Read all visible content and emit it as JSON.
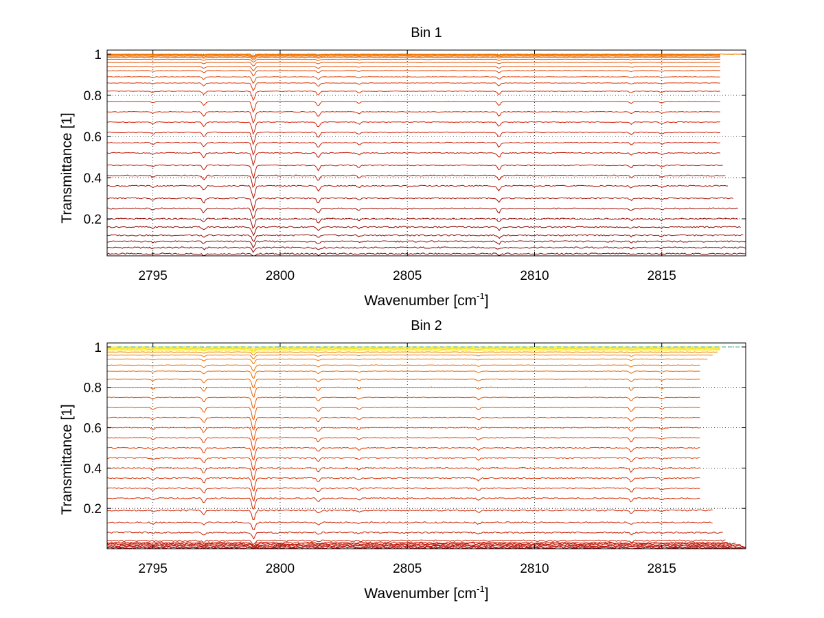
{
  "chart_data": [
    {
      "type": "line",
      "title": "Bin 1",
      "xlabel": "Wavenumber [cm",
      "xlabel_sup": "-1",
      "xlabel_end": "]",
      "ylabel": "Transmittance [1]",
      "xlim": [
        2793.2,
        2818.3
      ],
      "ylim": [
        0.02,
        1.02
      ],
      "xticks": [
        2795,
        2800,
        2805,
        2810,
        2815
      ],
      "xtick_labels": [
        "2795",
        "2800",
        "2805",
        "2810",
        "2815"
      ],
      "yticks": [
        0.2,
        0.4,
        0.6,
        0.8,
        1
      ],
      "ytick_labels": [
        "0.2",
        "0.4",
        "0.6",
        "0.8",
        "1"
      ],
      "grid": true,
      "series_description": "family of transmittance spectra, baselines stacked from ~0.03 to 1.0, darker red at low transmittance to orange near 1",
      "baselines": [
        0.03,
        0.06,
        0.09,
        0.12,
        0.16,
        0.2,
        0.25,
        0.3,
        0.36,
        0.41,
        0.46,
        0.52,
        0.57,
        0.62,
        0.67,
        0.72,
        0.77,
        0.82,
        0.86,
        0.89,
        0.92,
        0.94,
        0.96,
        0.975,
        0.985,
        0.99,
        0.995,
        0.998,
        1.0
      ],
      "x_end": [
        2818.3,
        2818.3,
        2818.3,
        2818.2,
        2818.1,
        2818.0,
        2818.0,
        2817.8,
        2817.6,
        2817.5,
        2817.4,
        2817.3,
        2817.3,
        2817.3,
        2817.3,
        2817.3,
        2817.3,
        2817.3,
        2817.3,
        2817.3,
        2817.3,
        2817.3,
        2817.3,
        2817.3,
        2817.3,
        2817.3,
        2817.3,
        2817.3,
        2818.3
      ],
      "absorption_lines": [
        {
          "x": 2795.0,
          "depth": 0.008
        },
        {
          "x": 2797.0,
          "depth": 0.022
        },
        {
          "x": 2798.95,
          "depth": 0.06
        },
        {
          "x": 2801.5,
          "depth": 0.025
        },
        {
          "x": 2803.1,
          "depth": 0.01
        },
        {
          "x": 2808.6,
          "depth": 0.022
        },
        {
          "x": 2813.8,
          "depth": 0.01
        },
        {
          "x": 2815.0,
          "depth": 0.008
        }
      ],
      "colors": {
        "dark": "#7a0000",
        "mid": "#d41c00",
        "light": "#f07a00"
      }
    },
    {
      "type": "line",
      "title": "Bin 2",
      "xlabel": "Wavenumber [cm",
      "xlabel_sup": "-1",
      "xlabel_end": "]",
      "ylabel": "Transmittance [1]",
      "xlim": [
        2793.2,
        2818.3
      ],
      "ylim": [
        0.0,
        1.02
      ],
      "xticks": [
        2795,
        2800,
        2805,
        2810,
        2815
      ],
      "xtick_labels": [
        "2795",
        "2800",
        "2805",
        "2810",
        "2815"
      ],
      "yticks": [
        0.2,
        0.4,
        0.6,
        0.8,
        1
      ],
      "ytick_labels": [
        "0.2",
        "0.4",
        "0.6",
        "0.8",
        "1"
      ],
      "grid": true,
      "series_description": "family of transmittance spectra, dense red curves near 0, orange/yellow near 1",
      "baselines": [
        0.0,
        0.005,
        0.01,
        0.015,
        0.02,
        0.025,
        0.03,
        0.04,
        0.08,
        0.13,
        0.19,
        0.25,
        0.3,
        0.35,
        0.4,
        0.45,
        0.5,
        0.55,
        0.6,
        0.65,
        0.7,
        0.75,
        0.8,
        0.84,
        0.88,
        0.91,
        0.94,
        0.96,
        0.975,
        0.985,
        0.99,
        0.995,
        1.0
      ],
      "x_end": [
        2818.3,
        2818.3,
        2818.3,
        2818.2,
        2818.1,
        2817.9,
        2817.6,
        2817.5,
        2817.4,
        2817.0,
        2817.0,
        2816.5,
        2816.5,
        2816.5,
        2816.5,
        2816.5,
        2816.5,
        2816.5,
        2816.5,
        2816.5,
        2816.5,
        2816.5,
        2816.5,
        2816.5,
        2816.5,
        2816.5,
        2816.8,
        2817.0,
        2817.2,
        2817.3,
        2817.3,
        2817.3,
        2817.3
      ],
      "absorption_lines": [
        {
          "x": 2795.0,
          "depth": 0.01
        },
        {
          "x": 2797.0,
          "depth": 0.025
        },
        {
          "x": 2798.95,
          "depth": 0.065
        },
        {
          "x": 2801.5,
          "depth": 0.02
        },
        {
          "x": 2803.1,
          "depth": 0.01
        },
        {
          "x": 2807.8,
          "depth": 0.012
        },
        {
          "x": 2813.8,
          "depth": 0.02
        },
        {
          "x": 2815.0,
          "depth": 0.008
        }
      ],
      "colors": {
        "dark": "#b00000",
        "mid": "#e33a00",
        "light": "#f39a00",
        "top": "#f5e000",
        "topline": "#2bb5a0"
      }
    }
  ]
}
